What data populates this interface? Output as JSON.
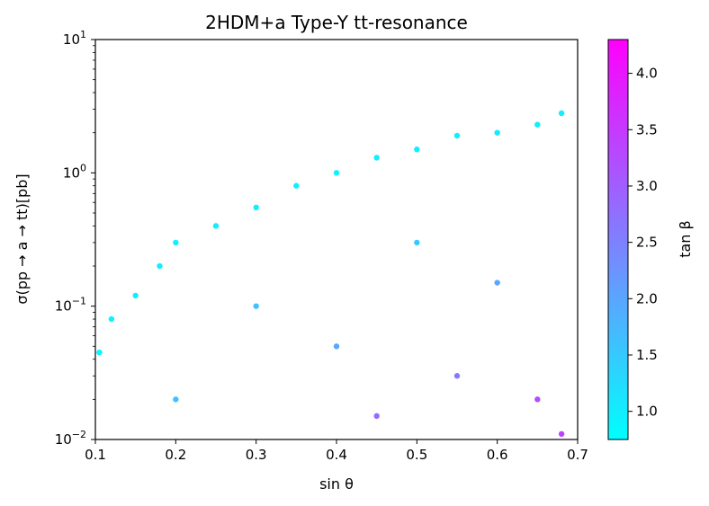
{
  "chart_data": {
    "type": "scatter",
    "title": "2HDM+a Type-Y tt-resonance",
    "xlabel": "sin θ",
    "ylabel": "σ(pp → a → tt)[pb]",
    "xlim": [
      0.1,
      0.7
    ],
    "ylim": [
      0.01,
      10
    ],
    "yscale": "log",
    "x_ticks": [
      0.1,
      0.2,
      0.3,
      0.4,
      0.5,
      0.6,
      0.7
    ],
    "x_tick_labels": [
      "0.1",
      "0.2",
      "0.3",
      "0.4",
      "0.5",
      "0.6",
      "0.7"
    ],
    "y_ticks": [
      0.01,
      0.1,
      1,
      10
    ],
    "y_tick_base": "10",
    "y_tick_exponents": [
      "−2",
      "−1",
      "0",
      "1"
    ],
    "grid": false,
    "marker_color_map": "cool",
    "colorbar": {
      "label": "tan β",
      "range": [
        0.75,
        4.3
      ],
      "ticks": [
        1.0,
        1.5,
        2.0,
        2.5,
        3.0,
        3.5,
        4.0
      ],
      "tick_labels": [
        "1.0",
        "1.5",
        "2.0",
        "2.5",
        "3.0",
        "3.5",
        "4.0"
      ],
      "color_low": "#00ffff",
      "color_high": "#ff00ff"
    },
    "series": [
      {
        "sampled_points": [
          {
            "x": 0.105,
            "y": 0.045,
            "tan_beta": 0.9
          },
          {
            "x": 0.12,
            "y": 0.08,
            "tan_beta": 0.95
          },
          {
            "x": 0.15,
            "y": 0.12,
            "tan_beta": 1.0
          },
          {
            "x": 0.18,
            "y": 0.2,
            "tan_beta": 1.0
          },
          {
            "x": 0.2,
            "y": 0.3,
            "tan_beta": 0.95
          },
          {
            "x": 0.25,
            "y": 0.4,
            "tan_beta": 1.0
          },
          {
            "x": 0.3,
            "y": 0.55,
            "tan_beta": 1.0
          },
          {
            "x": 0.35,
            "y": 0.8,
            "tan_beta": 1.0
          },
          {
            "x": 0.4,
            "y": 1.0,
            "tan_beta": 0.95
          },
          {
            "x": 0.45,
            "y": 1.3,
            "tan_beta": 1.0
          },
          {
            "x": 0.5,
            "y": 1.5,
            "tan_beta": 1.0
          },
          {
            "x": 0.55,
            "y": 1.9,
            "tan_beta": 1.0
          },
          {
            "x": 0.6,
            "y": 2.0,
            "tan_beta": 1.05
          },
          {
            "x": 0.65,
            "y": 2.3,
            "tan_beta": 1.0
          },
          {
            "x": 0.68,
            "y": 2.8,
            "tan_beta": 1.0
          },
          {
            "x": 0.3,
            "y": 0.1,
            "tan_beta": 1.6
          },
          {
            "x": 0.4,
            "y": 0.05,
            "tan_beta": 2.0
          },
          {
            "x": 0.5,
            "y": 0.3,
            "tan_beta": 1.5
          },
          {
            "x": 0.55,
            "y": 0.03,
            "tan_beta": 2.6
          },
          {
            "x": 0.6,
            "y": 0.15,
            "tan_beta": 2.0
          },
          {
            "x": 0.65,
            "y": 0.02,
            "tan_beta": 3.2
          },
          {
            "x": 0.68,
            "y": 0.011,
            "tan_beta": 3.4
          },
          {
            "x": 0.2,
            "y": 0.02,
            "tan_beta": 1.6
          },
          {
            "x": 0.45,
            "y": 0.015,
            "tan_beta": 2.8
          }
        ]
      }
    ]
  }
}
